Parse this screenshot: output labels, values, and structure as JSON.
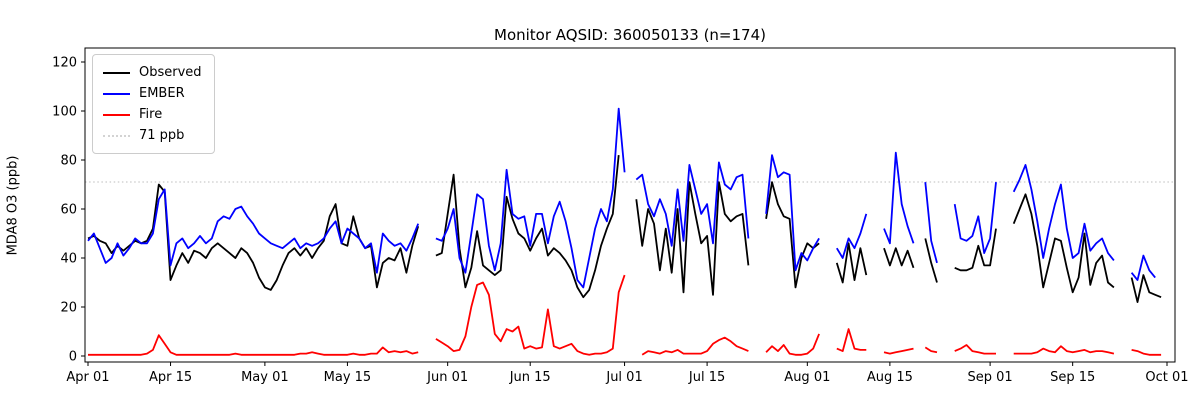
{
  "title": "Monitor AQSID: 360050133 (n=174)",
  "chart_data": {
    "type": "line",
    "title": "Monitor AQSID: 360050133 (n=174)",
    "xlabel": "",
    "ylabel": "MDA8 O3 (ppb)",
    "ylim": [
      0,
      125
    ],
    "yticks": [
      0,
      20,
      40,
      60,
      80,
      100,
      120
    ],
    "x_unit": "day_index_from_Apr_01",
    "x_range_days": [
      0,
      183
    ],
    "xticks": [
      {
        "day": 0,
        "label": "Apr 01"
      },
      {
        "day": 14,
        "label": "Apr 15"
      },
      {
        "day": 30,
        "label": "May 01"
      },
      {
        "day": 44,
        "label": "May 15"
      },
      {
        "day": 61,
        "label": "Jun 01"
      },
      {
        "day": 75,
        "label": "Jun 15"
      },
      {
        "day": 91,
        "label": "Jul 01"
      },
      {
        "day": 105,
        "label": "Jul 15"
      },
      {
        "day": 122,
        "label": "Aug 01"
      },
      {
        "day": 136,
        "label": "Aug 15"
      },
      {
        "day": 153,
        "label": "Sep 01"
      },
      {
        "day": 167,
        "label": "Sep 15"
      },
      {
        "day": 183,
        "label": "Oct 01"
      }
    ],
    "grid": false,
    "legend_position": "upper left",
    "threshold": {
      "label": "71 ppb",
      "value": 71,
      "color": "#d3d3d3",
      "style": "dotted"
    },
    "series": [
      {
        "name": "Observed",
        "color": "#000000",
        "values": [
          48,
          49,
          47,
          46,
          42,
          45,
          43,
          45,
          47,
          46,
          47,
          52,
          70,
          67,
          31,
          37,
          42,
          38,
          43,
          42,
          40,
          44,
          46,
          44,
          42,
          40,
          44,
          42,
          38,
          32,
          28,
          27,
          31,
          37,
          42,
          44,
          41,
          44,
          40,
          44,
          47,
          57,
          62,
          46,
          45,
          57,
          48,
          44,
          45,
          28,
          38,
          40,
          39,
          44,
          34,
          45,
          53,
          null,
          null,
          41,
          42,
          58,
          74,
          44,
          28,
          36,
          51,
          37,
          35,
          33,
          35,
          65,
          56,
          50,
          48,
          43,
          48,
          52,
          41,
          44,
          42,
          39,
          35,
          28,
          24,
          27,
          35,
          45,
          52,
          58,
          82,
          null,
          null,
          64,
          45,
          60,
          54,
          35,
          52,
          34,
          60,
          26,
          71,
          58,
          46,
          49,
          25,
          71,
          58,
          55,
          57,
          58,
          37,
          null,
          null,
          56,
          71,
          62,
          57,
          56,
          28,
          40,
          46,
          44,
          46,
          null,
          null,
          38,
          30,
          46,
          31,
          44,
          33,
          null,
          null,
          44,
          37,
          44,
          37,
          43,
          36,
          null,
          48,
          38,
          30,
          null,
          null,
          36,
          35,
          35,
          36,
          45,
          37,
          37,
          52,
          null,
          null,
          54,
          60,
          66,
          58,
          45,
          28,
          38,
          48,
          47,
          36,
          26,
          32,
          50,
          29,
          38,
          41,
          30,
          28,
          null,
          null,
          32,
          22,
          33,
          26,
          25,
          24
        ]
      },
      {
        "name": "EMBER",
        "color": "#0000ff",
        "values": [
          47,
          50,
          44,
          38,
          40,
          46,
          41,
          44,
          48,
          46,
          46,
          50,
          64,
          68,
          37,
          46,
          48,
          44,
          46,
          49,
          46,
          48,
          55,
          57,
          56,
          60,
          61,
          57,
          54,
          50,
          48,
          46,
          45,
          44,
          46,
          48,
          44,
          46,
          45,
          46,
          48,
          52,
          55,
          46,
          52,
          50,
          48,
          44,
          46,
          34,
          50,
          47,
          45,
          46,
          43,
          48,
          54,
          null,
          null,
          48,
          47,
          52,
          60,
          40,
          34,
          50,
          66,
          64,
          45,
          35,
          46,
          76,
          58,
          56,
          57,
          45,
          58,
          58,
          46,
          57,
          63,
          55,
          44,
          31,
          28,
          40,
          52,
          60,
          55,
          68,
          101,
          75,
          null,
          72,
          74,
          62,
          57,
          64,
          58,
          45,
          68,
          47,
          78,
          68,
          58,
          62,
          46,
          79,
          70,
          68,
          73,
          74,
          48,
          null,
          null,
          58,
          82,
          73,
          75,
          74,
          35,
          42,
          39,
          44,
          48,
          null,
          null,
          44,
          40,
          48,
          44,
          50,
          58,
          null,
          null,
          52,
          46,
          83,
          62,
          53,
          46,
          null,
          71,
          47,
          38,
          null,
          null,
          62,
          48,
          47,
          49,
          57,
          42,
          48,
          71,
          null,
          null,
          67,
          72,
          78,
          68,
          55,
          40,
          52,
          62,
          70,
          52,
          40,
          42,
          54,
          43,
          46,
          48,
          42,
          39,
          null,
          null,
          34,
          31,
          41,
          35,
          32,
          null
        ]
      },
      {
        "name": "Fire",
        "color": "#ff0000",
        "values": [
          0.5,
          0.5,
          0.5,
          0.5,
          0.5,
          0.5,
          0.5,
          0.5,
          0.5,
          0.5,
          1,
          2.5,
          8.5,
          5,
          1.5,
          0.5,
          0.5,
          0.5,
          0.5,
          0.5,
          0.5,
          0.5,
          0.5,
          0.5,
          0.5,
          1,
          0.5,
          0.5,
          0.5,
          0.5,
          0.5,
          0.5,
          0.5,
          0.5,
          0.5,
          0.5,
          1,
          1,
          1.5,
          1,
          0.5,
          0.5,
          0.5,
          0.5,
          0.5,
          1,
          0.5,
          0.5,
          1,
          1,
          3.5,
          1.5,
          2,
          1.5,
          2,
          1,
          1.5,
          null,
          null,
          7,
          5.5,
          4,
          2,
          2.5,
          8,
          20,
          29,
          30,
          25,
          9,
          6,
          11,
          10,
          12,
          3,
          4,
          3,
          3.5,
          19,
          4,
          3,
          4,
          5,
          2,
          1,
          0.5,
          1,
          1,
          1.5,
          3,
          26,
          33,
          null,
          null,
          0.5,
          2,
          1.5,
          1,
          2,
          1.5,
          2.5,
          1,
          1,
          1,
          1,
          2,
          5,
          6.5,
          7.5,
          6,
          4,
          3,
          2,
          null,
          null,
          1.5,
          4,
          2,
          4.5,
          1,
          0.5,
          0.5,
          1,
          3,
          9,
          null,
          null,
          3,
          2,
          11,
          3,
          2.5,
          2.5,
          null,
          null,
          1.5,
          1,
          1.5,
          2,
          2.5,
          3,
          null,
          3.5,
          2,
          1.5,
          null,
          null,
          2,
          3,
          4.5,
          2,
          1.5,
          1,
          1,
          1,
          null,
          null,
          1,
          1,
          1,
          1,
          1.5,
          3,
          2,
          1.5,
          4,
          2,
          1.5,
          2,
          2.5,
          1.5,
          2,
          2,
          1.5,
          1,
          null,
          null,
          2.5,
          2,
          1,
          0.5,
          0.5,
          0.5
        ]
      }
    ]
  },
  "legend": {
    "observed_label": "Observed",
    "ember_label": "EMBER",
    "fire_label": "Fire",
    "threshold_label": "71 ppb"
  }
}
